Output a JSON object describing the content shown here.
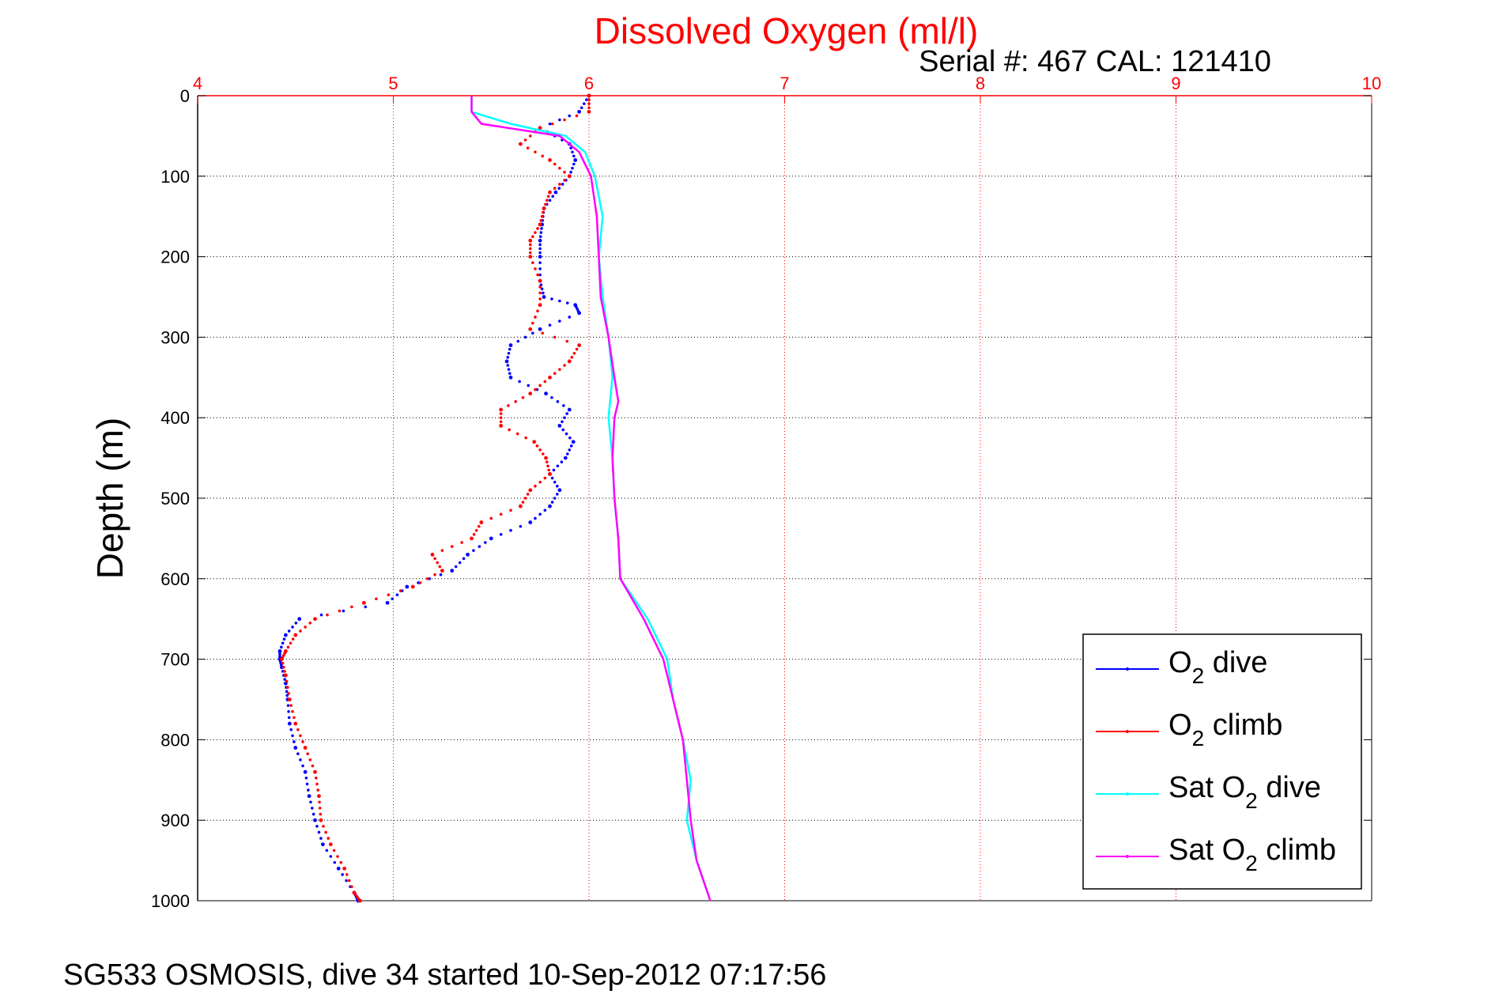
{
  "chart_data": {
    "type": "line",
    "title": "Dissolved Oxygen (ml/l)",
    "subtitle": "Serial #: 467  CAL: 121410",
    "ylabel": "Depth (m)",
    "xlabel": "",
    "xlim": [
      4,
      10
    ],
    "ylim": [
      0,
      1000
    ],
    "y_reversed": true,
    "grid": true,
    "x_ticks": [
      "4",
      "5",
      "6",
      "7",
      "8",
      "9",
      "10"
    ],
    "y_ticks": [
      "0",
      "100",
      "200",
      "300",
      "400",
      "500",
      "600",
      "700",
      "800",
      "900",
      "1000"
    ],
    "legend_position": "bottom-right",
    "colors": {
      "title": "#ff0000",
      "x_ticks": "#ff0000",
      "x_grid": "#ff0000",
      "y_grid": "#000000"
    },
    "series": [
      {
        "name": "O2 dive",
        "color": "#0000ff",
        "style": "dots",
        "depth": [
          0,
          20,
          40,
          60,
          80,
          100,
          120,
          140,
          160,
          180,
          200,
          230,
          250,
          260,
          270,
          290,
          310,
          330,
          350,
          370,
          390,
          410,
          430,
          450,
          470,
          490,
          510,
          530,
          550,
          570,
          590,
          610,
          630,
          650,
          670,
          690,
          700,
          710,
          730,
          750,
          780,
          810,
          840,
          870,
          900,
          930,
          960,
          990,
          1000
        ],
        "values": [
          6.0,
          5.95,
          5.75,
          5.9,
          5.93,
          5.9,
          5.83,
          5.77,
          5.76,
          5.75,
          5.75,
          5.75,
          5.77,
          5.93,
          5.95,
          5.75,
          5.6,
          5.58,
          5.6,
          5.78,
          5.9,
          5.85,
          5.92,
          5.88,
          5.8,
          5.85,
          5.8,
          5.7,
          5.5,
          5.38,
          5.3,
          5.07,
          4.97,
          4.52,
          4.45,
          4.42,
          4.42,
          4.43,
          4.45,
          4.46,
          4.47,
          4.5,
          4.55,
          4.57,
          4.6,
          4.64,
          4.72,
          4.8,
          4.82
        ]
      },
      {
        "name": "O2 climb",
        "color": "#ff0000",
        "style": "dots",
        "depth": [
          0,
          20,
          40,
          60,
          80,
          100,
          120,
          140,
          160,
          180,
          200,
          230,
          260,
          290,
          310,
          330,
          350,
          370,
          390,
          410,
          430,
          450,
          470,
          490,
          510,
          530,
          550,
          570,
          590,
          610,
          630,
          650,
          670,
          690,
          700,
          720,
          750,
          780,
          810,
          840,
          870,
          900,
          930,
          960,
          990,
          1000
        ],
        "values": [
          6.0,
          6.0,
          5.75,
          5.65,
          5.8,
          5.9,
          5.8,
          5.77,
          5.75,
          5.7,
          5.7,
          5.75,
          5.75,
          5.7,
          5.95,
          5.9,
          5.8,
          5.7,
          5.55,
          5.55,
          5.72,
          5.78,
          5.8,
          5.7,
          5.65,
          5.45,
          5.4,
          5.2,
          5.25,
          5.1,
          4.85,
          4.6,
          4.5,
          4.45,
          4.43,
          4.45,
          4.47,
          4.5,
          4.55,
          4.6,
          4.62,
          4.63,
          4.68,
          4.75,
          4.8,
          4.83
        ]
      },
      {
        "name": "Sat O2 dive",
        "color": "#00ffff",
        "style": "line",
        "depth": [
          0,
          20,
          35,
          50,
          70,
          100,
          150,
          200,
          250,
          300,
          350,
          400,
          450,
          500,
          550,
          600,
          650,
          700,
          750,
          800,
          850,
          900,
          950,
          1000
        ],
        "values": [
          5.4,
          5.4,
          5.6,
          5.88,
          5.98,
          6.03,
          6.07,
          6.05,
          6.07,
          6.1,
          6.12,
          6.1,
          6.12,
          6.13,
          6.15,
          6.16,
          6.3,
          6.4,
          6.43,
          6.48,
          6.52,
          6.5,
          6.55,
          6.62
        ]
      },
      {
        "name": "Sat O2 climb",
        "color": "#ff00ff",
        "style": "line",
        "depth": [
          0,
          20,
          35,
          50,
          70,
          100,
          150,
          200,
          250,
          300,
          350,
          380,
          400,
          450,
          500,
          550,
          600,
          650,
          700,
          750,
          800,
          850,
          900,
          950,
          1000
        ],
        "values": [
          5.4,
          5.4,
          5.45,
          5.85,
          5.95,
          6.01,
          6.04,
          6.05,
          6.06,
          6.1,
          6.13,
          6.15,
          6.13,
          6.12,
          6.13,
          6.15,
          6.16,
          6.28,
          6.38,
          6.43,
          6.48,
          6.5,
          6.52,
          6.55,
          6.62
        ]
      }
    ],
    "legend_entries": [
      {
        "base": "O",
        "sub": "2",
        "rest": " dive"
      },
      {
        "base": "O",
        "sub": "2",
        "rest": " climb"
      },
      {
        "base": "Sat O",
        "sub": "2",
        "rest": " dive"
      },
      {
        "base": "Sat O",
        "sub": "2",
        "rest": " climb"
      }
    ]
  },
  "footer": "SG533 OSMOSIS, dive 34 started 10-Sep-2012 07:17:56"
}
